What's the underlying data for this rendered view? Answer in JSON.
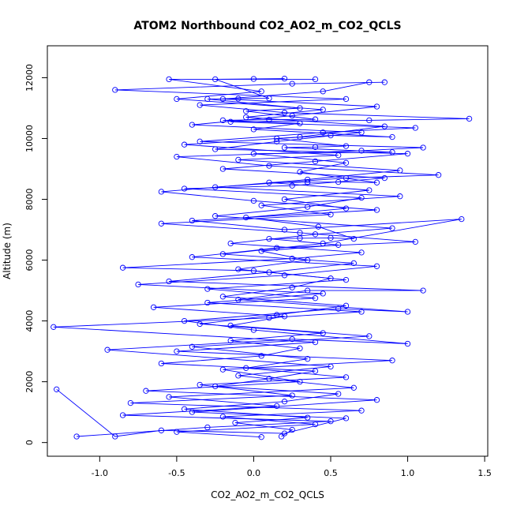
{
  "chart_data": {
    "type": "line",
    "title": "ATOM2 Northbound CO2_AO2_m_CO2_QCLS",
    "xlabel": "CO2_AO2_m_CO2_QCLS",
    "ylabel": "Altitude (m)",
    "xlim": [
      -1.34,
      1.52
    ],
    "ylim": [
      -450,
      13050
    ],
    "x_ticks": [
      -1.0,
      -0.5,
      0.0,
      0.5,
      1.0,
      1.5
    ],
    "x_tick_labels": [
      "-1.0",
      "-0.5",
      "0.0",
      "0.5",
      "1.0",
      "1.5"
    ],
    "y_ticks": [
      0,
      2000,
      4000,
      6000,
      8000,
      10000,
      12000
    ],
    "y_tick_labels": [
      "0",
      "2000",
      "4000",
      "6000",
      "8000",
      "10000",
      "12000"
    ],
    "grid": false,
    "line_color": "#0000ff",
    "marker": "open-circle",
    "series": [
      {
        "points": [
          [
            0.18,
            200
          ],
          [
            0.25,
            420
          ],
          [
            -0.12,
            650
          ],
          [
            0.35,
            820
          ],
          [
            -0.45,
            1100
          ],
          [
            0.2,
            1350
          ],
          [
            0.55,
            1600
          ],
          [
            -0.25,
            1850
          ],
          [
            0.1,
            2100
          ],
          [
            0.4,
            2350
          ],
          [
            -0.6,
            2600
          ],
          [
            0.05,
            2850
          ],
          [
            0.3,
            3100
          ],
          [
            -0.15,
            3350
          ],
          [
            0.45,
            3600
          ],
          [
            -0.35,
            3900
          ],
          [
            0.15,
            4200
          ],
          [
            0.6,
            4500
          ],
          [
            -0.2,
            4800
          ],
          [
            0.25,
            5100
          ],
          [
            0.5,
            5400
          ],
          [
            -0.1,
            5700
          ],
          [
            0.35,
            6000
          ],
          [
            0.05,
            6300
          ],
          [
            0.55,
            6500
          ],
          [
            0.1,
            6700
          ],
          [
            0.3,
            6720
          ],
          [
            0.5,
            6730
          ],
          [
            0.65,
            6700
          ],
          [
            0.42,
            7100
          ],
          [
            -0.05,
            7400
          ],
          [
            0.6,
            7700
          ],
          [
            0.2,
            8000
          ],
          [
            0.75,
            8300
          ],
          [
            0.1,
            8550
          ],
          [
            0.35,
            8560
          ],
          [
            0.55,
            8570
          ],
          [
            0.8,
            8550
          ],
          [
            0.3,
            8900
          ],
          [
            0.6,
            9200
          ],
          [
            0.0,
            9500
          ],
          [
            0.9,
            9550
          ],
          [
            0.2,
            9700
          ],
          [
            0.4,
            9720
          ],
          [
            0.6,
            9750
          ],
          [
            0.15,
            10000
          ],
          [
            0.5,
            10100
          ],
          [
            0.9,
            10050
          ],
          [
            0.0,
            10300
          ],
          [
            0.3,
            10500
          ],
          [
            -0.2,
            10600
          ],
          [
            0.1,
            10620
          ],
          [
            0.4,
            10630
          ],
          [
            -0.05,
            10900
          ],
          [
            0.3,
            11000
          ],
          [
            -0.3,
            11300
          ],
          [
            -0.1,
            11310
          ],
          [
            0.1,
            11320
          ],
          [
            -0.25,
            11950
          ],
          [
            0.0,
            11960
          ],
          [
            0.2,
            11970
          ]
        ]
      },
      {
        "points": [
          [
            -1.28,
            1750
          ],
          [
            -0.9,
            200
          ],
          [
            -0.6,
            400
          ],
          [
            0.2,
            300
          ],
          [
            0.6,
            800
          ],
          [
            -0.4,
            1000
          ],
          [
            0.8,
            1400
          ],
          [
            -0.7,
            1700
          ],
          [
            0.3,
            2000
          ],
          [
            -0.2,
            2400
          ],
          [
            0.9,
            2700
          ],
          [
            -0.5,
            3000
          ],
          [
            0.4,
            3300
          ],
          [
            -1.3,
            3800
          ],
          [
            0.1,
            4100
          ],
          [
            0.7,
            4300
          ],
          [
            -0.3,
            4600
          ],
          [
            0.45,
            4900
          ],
          [
            -0.75,
            5200
          ],
          [
            0.2,
            5500
          ],
          [
            0.8,
            5800
          ],
          [
            -0.4,
            6100
          ],
          [
            0.15,
            6400
          ],
          [
            1.05,
            6600
          ],
          [
            0.3,
            6900
          ],
          [
            -0.6,
            7200
          ],
          [
            0.5,
            7500
          ],
          [
            0.05,
            7800
          ],
          [
            0.95,
            8100
          ],
          [
            -0.25,
            8400
          ],
          [
            0.6,
            8700
          ],
          [
            1.2,
            8800
          ],
          [
            0.1,
            9100
          ],
          [
            -0.5,
            9400
          ],
          [
            0.7,
            9600
          ],
          [
            1.1,
            9700
          ],
          [
            -0.35,
            9900
          ],
          [
            0.45,
            10200
          ],
          [
            1.05,
            10350
          ],
          [
            -0.15,
            10550
          ],
          [
            0.75,
            10600
          ],
          [
            1.4,
            10650
          ],
          [
            0.2,
            10850
          ],
          [
            -0.35,
            11100
          ],
          [
            0.6,
            11300
          ],
          [
            -0.9,
            11600
          ],
          [
            0.25,
            11800
          ],
          [
            0.85,
            11850
          ]
        ]
      },
      {
        "points": [
          [
            -1.15,
            200
          ],
          [
            -0.3,
            500
          ],
          [
            0.5,
            700
          ],
          [
            -0.85,
            900
          ],
          [
            0.15,
            1200
          ],
          [
            -0.55,
            1500
          ],
          [
            0.65,
            1800
          ],
          [
            -0.1,
            2200
          ],
          [
            0.5,
            2500
          ],
          [
            -0.95,
            3050
          ],
          [
            0.25,
            3400
          ],
          [
            1.0,
            3250
          ],
          [
            0.0,
            3700
          ],
          [
            -0.45,
            4000
          ],
          [
            0.55,
            4400
          ],
          [
            1.0,
            4300
          ],
          [
            -0.1,
            4700
          ],
          [
            0.35,
            5000
          ],
          [
            1.1,
            5000
          ],
          [
            -0.55,
            5300
          ],
          [
            0.1,
            5600
          ],
          [
            0.65,
            5900
          ],
          [
            -0.2,
            6200
          ],
          [
            0.45,
            6550
          ],
          [
            1.35,
            7350
          ],
          [
            0.2,
            7000
          ],
          [
            -0.4,
            7300
          ],
          [
            0.8,
            7650
          ],
          [
            0.0,
            7950
          ],
          [
            -0.6,
            8250
          ],
          [
            0.35,
            8650
          ],
          [
            0.95,
            8950
          ],
          [
            -0.1,
            9300
          ],
          [
            0.55,
            9450
          ],
          [
            -0.45,
            9800
          ],
          [
            0.3,
            10050
          ],
          [
            0.85,
            10400
          ],
          [
            -0.05,
            10700
          ],
          [
            0.45,
            10950
          ],
          [
            -0.5,
            11300
          ],
          [
            0.05,
            11550
          ],
          [
            -0.55,
            11950
          ],
          [
            0.4,
            11950
          ]
        ]
      },
      {
        "points": [
          [
            0.05,
            180
          ],
          [
            -0.5,
            350
          ],
          [
            0.4,
            600
          ],
          [
            -0.2,
            850
          ],
          [
            0.7,
            1050
          ],
          [
            -0.8,
            1300
          ],
          [
            0.25,
            1550
          ],
          [
            -0.35,
            1900
          ],
          [
            0.6,
            2150
          ],
          [
            -0.05,
            2450
          ],
          [
            0.35,
            2750
          ],
          [
            -0.4,
            3150
          ],
          [
            0.75,
            3500
          ],
          [
            -0.15,
            3850
          ],
          [
            0.2,
            4150
          ],
          [
            -0.65,
            4450
          ],
          [
            0.4,
            4750
          ],
          [
            -0.3,
            5050
          ],
          [
            0.6,
            5350
          ],
          [
            0.0,
            5650
          ],
          [
            -0.85,
            5750
          ],
          [
            0.25,
            6050
          ],
          [
            0.7,
            6250
          ],
          [
            -0.15,
            6550
          ],
          [
            0.4,
            6850
          ],
          [
            0.9,
            7050
          ],
          [
            -0.25,
            7450
          ],
          [
            0.35,
            7750
          ],
          [
            0.7,
            8050
          ],
          [
            -0.45,
            8350
          ],
          [
            0.25,
            8450
          ],
          [
            0.85,
            8700
          ],
          [
            -0.2,
            9000
          ],
          [
            0.4,
            9250
          ],
          [
            1.0,
            9500
          ],
          [
            -0.25,
            9650
          ],
          [
            0.15,
            9900
          ],
          [
            0.7,
            10200
          ],
          [
            -0.4,
            10450
          ],
          [
            0.25,
            10750
          ],
          [
            0.8,
            11050
          ],
          [
            -0.2,
            11300
          ],
          [
            0.45,
            11550
          ],
          [
            0.75,
            11850
          ]
        ]
      }
    ]
  }
}
